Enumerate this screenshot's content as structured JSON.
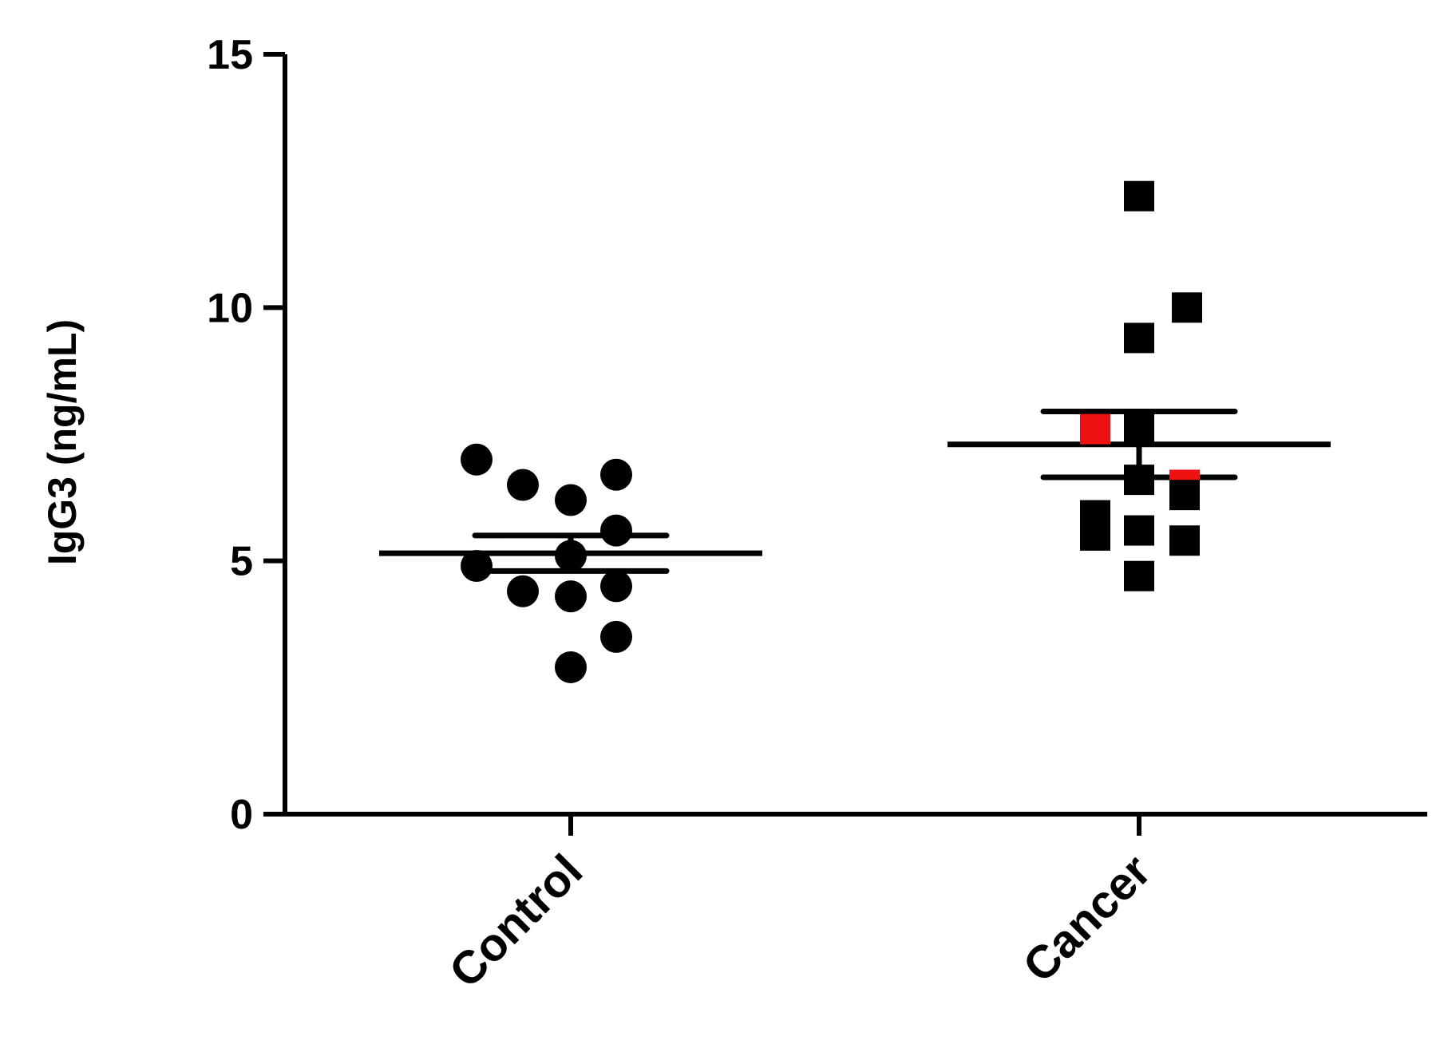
{
  "chart_data": {
    "type": "scatter",
    "ylabel": "IgG3 (ng/mL)",
    "xlabel": "",
    "categories": [
      "Control",
      "Cancer"
    ],
    "ylim": [
      0,
      15
    ],
    "yticks": [
      0,
      5,
      10,
      15
    ],
    "grid": false,
    "series": [
      {
        "category": "Control",
        "marker": "circle",
        "points": [
          {
            "x": "Control",
            "y": 7.0,
            "color": "#000000"
          },
          {
            "x": "Control",
            "y": 6.5,
            "color": "#000000"
          },
          {
            "x": "Control",
            "y": 6.2,
            "color": "#000000"
          },
          {
            "x": "Control",
            "y": 6.7,
            "color": "#000000"
          },
          {
            "x": "Control",
            "y": 5.6,
            "color": "#000000"
          },
          {
            "x": "Control",
            "y": 5.1,
            "color": "#000000"
          },
          {
            "x": "Control",
            "y": 4.9,
            "color": "#000000"
          },
          {
            "x": "Control",
            "y": 4.4,
            "color": "#000000"
          },
          {
            "x": "Control",
            "y": 4.3,
            "color": "#000000"
          },
          {
            "x": "Control",
            "y": 4.5,
            "color": "#000000"
          },
          {
            "x": "Control",
            "y": 3.5,
            "color": "#000000"
          },
          {
            "x": "Control",
            "y": 2.9,
            "color": "#000000"
          }
        ],
        "mean": 5.15,
        "sem": 0.35
      },
      {
        "category": "Cancer",
        "marker": "square",
        "points": [
          {
            "x": "Cancer",
            "y": 12.2,
            "color": "#000000"
          },
          {
            "x": "Cancer",
            "y": 10.0,
            "color": "#000000"
          },
          {
            "x": "Cancer",
            "y": 9.4,
            "color": "#000000"
          },
          {
            "x": "Cancer",
            "y": 7.6,
            "color": "#ee1111"
          },
          {
            "x": "Cancer",
            "y": 7.6,
            "color": "#000000"
          },
          {
            "x": "Cancer",
            "y": 6.5,
            "color": "#ee1111"
          },
          {
            "x": "Cancer",
            "y": 6.6,
            "color": "#000000"
          },
          {
            "x": "Cancer",
            "y": 6.3,
            "color": "#000000"
          },
          {
            "x": "Cancer",
            "y": 5.9,
            "color": "#000000"
          },
          {
            "x": "Cancer",
            "y": 5.5,
            "color": "#000000"
          },
          {
            "x": "Cancer",
            "y": 5.6,
            "color": "#000000"
          },
          {
            "x": "Cancer",
            "y": 5.4,
            "color": "#000000"
          },
          {
            "x": "Cancer",
            "y": 4.7,
            "color": "#000000"
          }
        ],
        "mean": 7.3,
        "sem": 0.65
      }
    ]
  }
}
